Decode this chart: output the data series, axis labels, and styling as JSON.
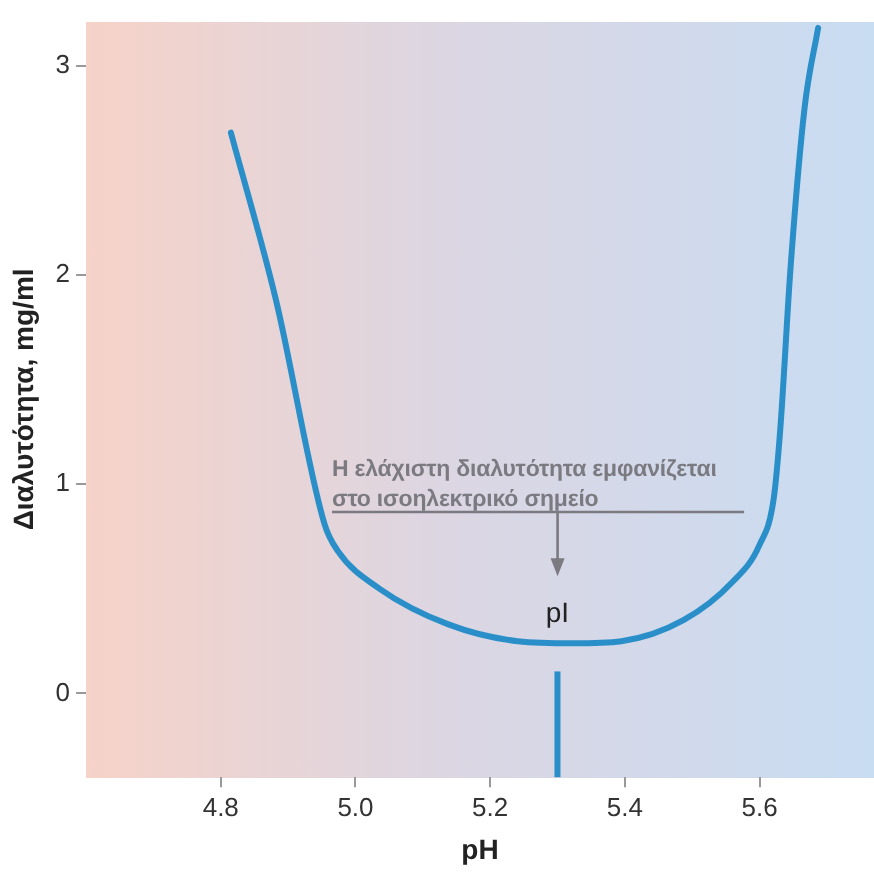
{
  "chart_data": {
    "type": "line",
    "xlabel": "pH",
    "ylabel": "Διαλυτότητα, mg/ml",
    "xlim": [
      4.6,
      5.77
    ],
    "xticks": [
      {
        "value": 4.8,
        "label": "4.8"
      },
      {
        "value": 5.0,
        "label": "5.0"
      },
      {
        "value": 5.2,
        "label": "5.2"
      },
      {
        "value": 5.4,
        "label": "5.4"
      },
      {
        "value": 5.6,
        "label": "5.6"
      }
    ],
    "ylim": [
      -0.4,
      3.21
    ],
    "yticks": [
      0,
      1,
      2,
      3
    ],
    "grid": false,
    "legend": false,
    "series": [
      {
        "color": "#2a8fc8",
        "x": [
          4.815,
          4.882,
          4.954,
          4.974,
          5.036,
          5.138,
          5.241,
          5.323,
          5.395,
          5.487,
          5.559,
          5.6,
          5.621,
          5.631,
          5.646,
          5.667,
          5.687
        ],
        "values": [
          2.68,
          1.88,
          0.81,
          0.68,
          0.5,
          0.33,
          0.25,
          0.24,
          0.25,
          0.35,
          0.53,
          0.71,
          0.93,
          1.27,
          2.03,
          2.8,
          3.18
        ]
      }
    ],
    "ref_lines": [
      {
        "axis": "x",
        "value": 5.3,
        "label": "pI",
        "color": "#2a8fc8"
      }
    ],
    "annotations": [
      "Η ελάχιστη διαλυτότητα εμφανίζεται στο ισοηλεκτρικό σημείο"
    ]
  }
}
